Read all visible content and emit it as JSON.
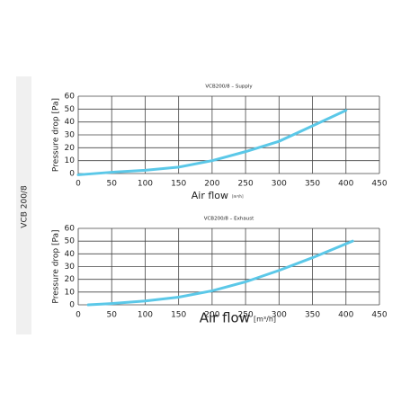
{
  "sidebar_label": "VCB 200/8",
  "chart_data": [
    {
      "type": "line",
      "title": "VCB200/8 – Supply",
      "x_label": "Air flow",
      "x_unit": "[m³/h]",
      "y_label": "Pressure drop [Pa]",
      "x": [
        0,
        50,
        100,
        150,
        200,
        250,
        300,
        350,
        400
      ],
      "values": [
        -1,
        1,
        2.5,
        5,
        10,
        17,
        25,
        37,
        49
      ],
      "color": "#5bc8e8",
      "xlim": [
        0,
        450
      ],
      "xticks": [
        0,
        50,
        100,
        150,
        200,
        250,
        300,
        350,
        400,
        450
      ],
      "ylim": [
        0,
        60
      ],
      "yticks": [
        0,
        10,
        20,
        30,
        40,
        50,
        60
      ],
      "grid": true
    },
    {
      "type": "line",
      "title": "VCB200/8 – Exhaust",
      "x_label": "Air flow",
      "x_unit": "[m³/h]",
      "y_label": "Pressure drop [Pa]",
      "x": [
        15,
        50,
        100,
        150,
        200,
        250,
        300,
        350,
        410
      ],
      "values": [
        0,
        1,
        3,
        6,
        11,
        18,
        27,
        37,
        50
      ],
      "color": "#5bc8e8",
      "xlim": [
        0,
        450
      ],
      "xticks": [
        0,
        50,
        100,
        150,
        200,
        250,
        300,
        350,
        400,
        450
      ],
      "ylim": [
        0,
        60
      ],
      "yticks": [
        0,
        10,
        20,
        30,
        40,
        50,
        60
      ],
      "grid": true
    }
  ]
}
